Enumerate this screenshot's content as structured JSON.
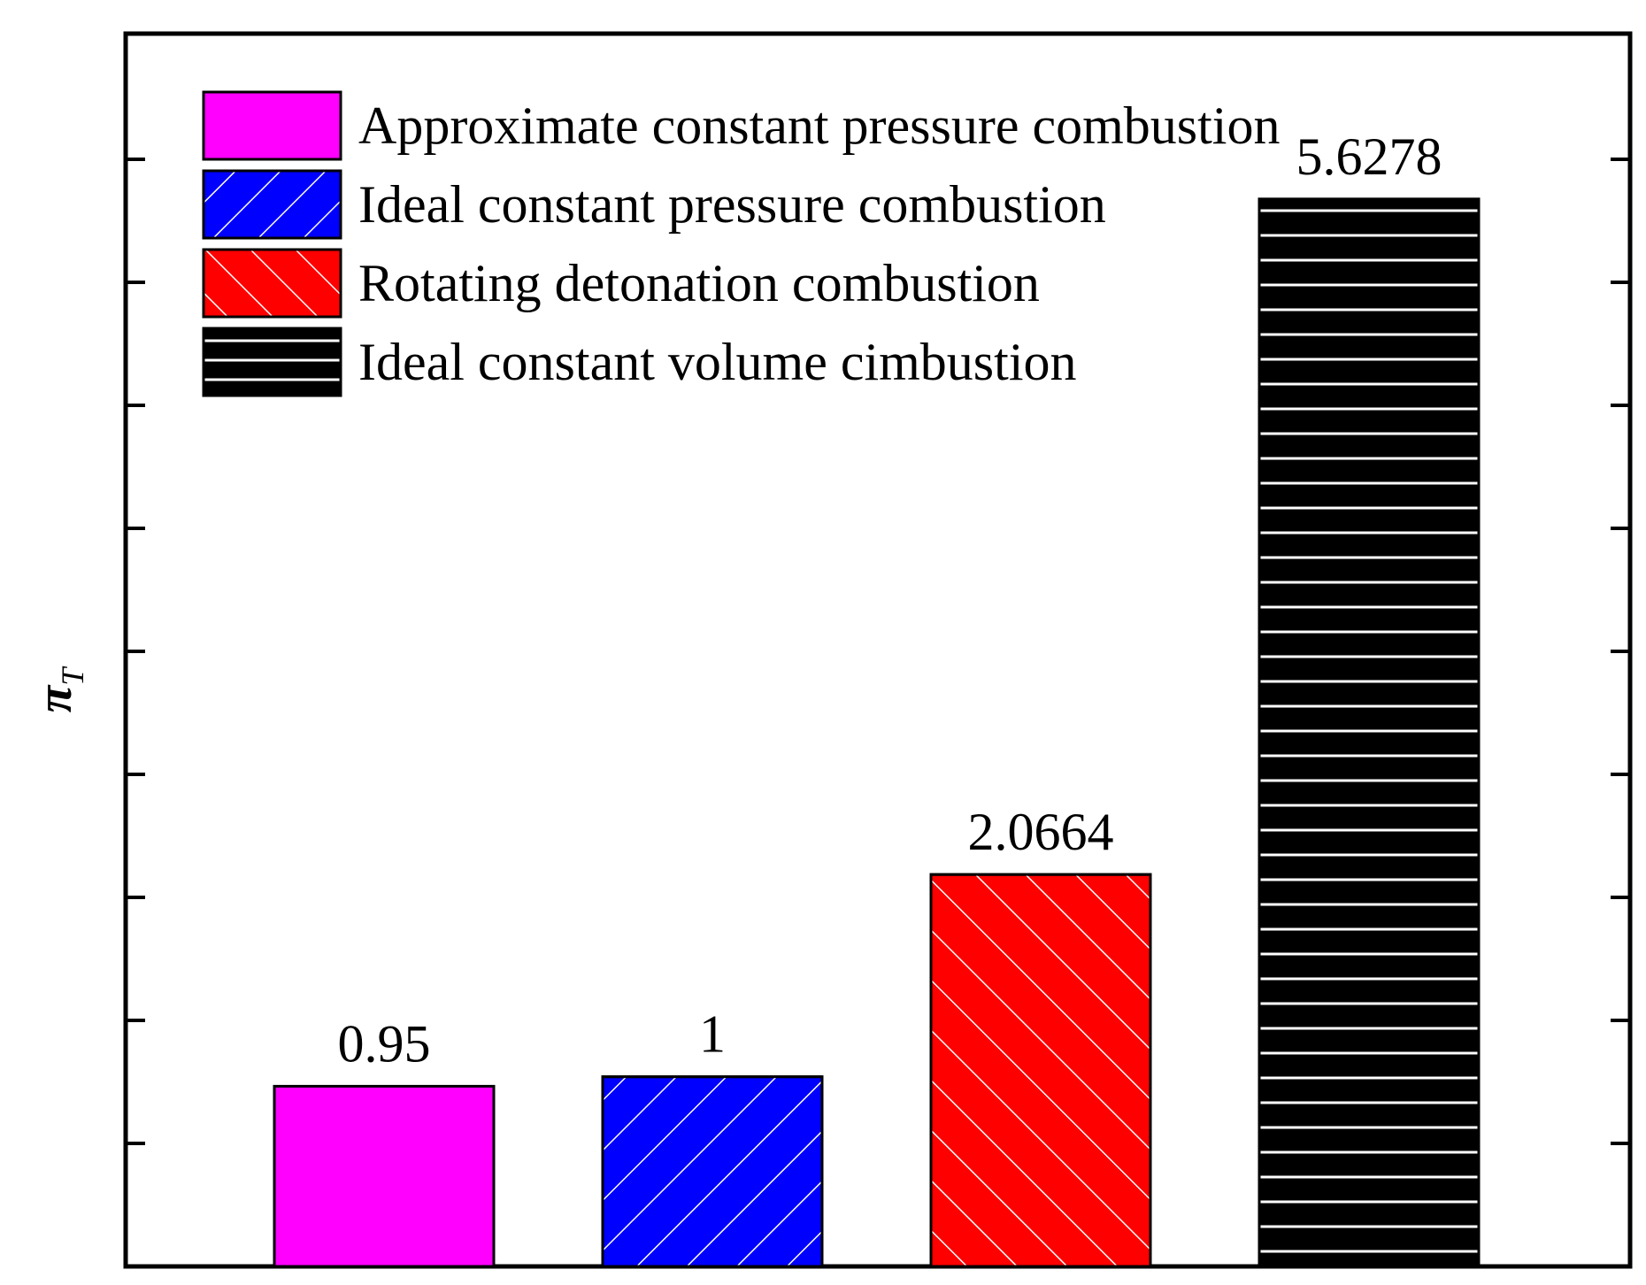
{
  "chart_data": {
    "type": "bar",
    "categories": [
      "Approximate constant pressure combustion",
      "Ideal constant pressure combustion",
      "Rotating detonation combustion",
      "Ideal constant volume cimbustion"
    ],
    "values": [
      0.95,
      1,
      2.0664,
      5.6278
    ],
    "data_labels": [
      "0.95",
      "1",
      "2.0664",
      "5.6278"
    ],
    "ylabel": {
      "symbol": "π",
      "subscript": "T"
    },
    "xlabel": "",
    "title": "",
    "ylim": [
      0,
      6.5
    ],
    "ytick_count": 10,
    "legend": {
      "placement": "top-left",
      "entries": [
        {
          "label": "Approximate constant pressure combustion",
          "color": "#ff00ff",
          "hatch": "none"
        },
        {
          "label": "Ideal constant pressure combustion",
          "color": "#0000ff",
          "hatch": "forward-diagonal"
        },
        {
          "label": "Rotating detonation combustion",
          "color": "#ff0000",
          "hatch": "backward-diagonal"
        },
        {
          "label": "Ideal constant volume cimbustion",
          "color": "#000000",
          "hatch": "horizontal"
        }
      ]
    },
    "grid": false
  }
}
